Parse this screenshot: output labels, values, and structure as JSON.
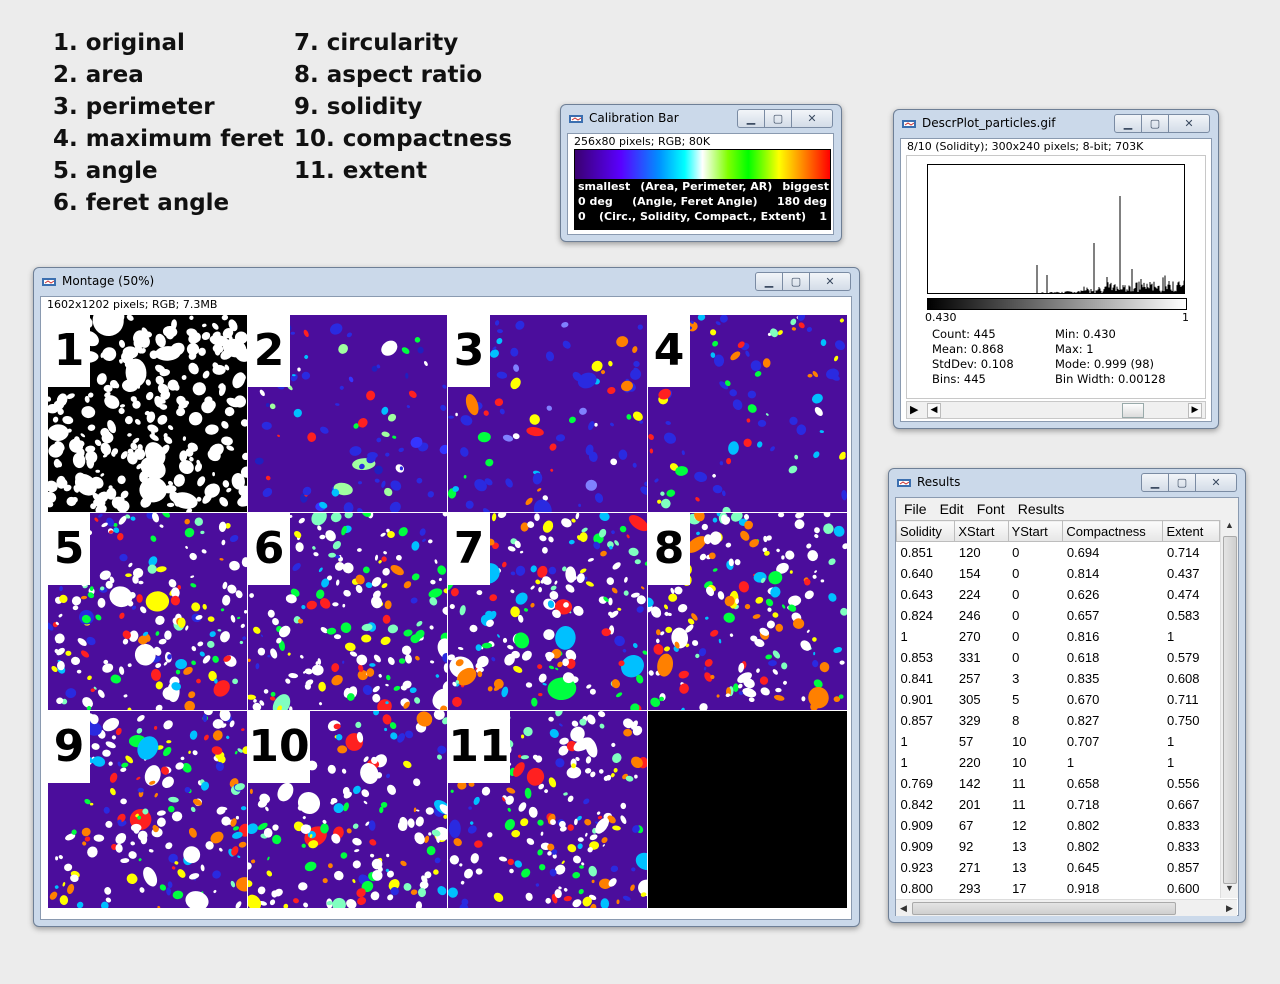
{
  "legend": {
    "col1": [
      "1. original",
      "2. area",
      "3. perimeter",
      "4. maximum feret",
      "5. angle",
      "6. feret angle"
    ],
    "col2": [
      "7. circularity",
      "8. aspect ratio",
      "9. solidity",
      "10. compactness",
      "11. extent"
    ]
  },
  "calibration": {
    "title": "Calibration Bar",
    "info": "256x80 pixels; RGB; 80K",
    "rows": [
      [
        "smallest",
        "(Area, Perimeter, AR)",
        "biggest"
      ],
      [
        "0 deg",
        "(Angle, Feret Angle)",
        "180 deg"
      ],
      [
        "0",
        "(Circ., Solidity, Compact., Extent)",
        "1"
      ]
    ]
  },
  "descr": {
    "title": "DescrPlot_particles.gif",
    "info": "8/10 (Solidity); 300x240 pixels; 8-bit; 703K",
    "axis_min": "0.430",
    "axis_max": "1",
    "stats_left": [
      "Count: 445",
      "Mean: 0.868",
      "StdDev: 0.108",
      "Bins: 445"
    ],
    "stats_right": [
      "Min: 0.430",
      "Max: 1",
      "Mode: 0.999 (98)",
      "Bin Width: 0.00128"
    ]
  },
  "montage": {
    "title": "Montage (50%)",
    "info": "1602x1202 pixels; RGB; 7.3MB",
    "tiles": [
      "1",
      "2",
      "3",
      "4",
      "5",
      "6",
      "7",
      "8",
      "9",
      "10",
      "11"
    ]
  },
  "results": {
    "title": "Results",
    "menu": [
      "File",
      "Edit",
      "Font",
      "Results"
    ],
    "columns": [
      "Solidity",
      "XStart",
      "YStart",
      "Compactness",
      "Extent"
    ],
    "rows": [
      [
        "0.851",
        "120",
        "0",
        "0.694",
        "0.714"
      ],
      [
        "0.640",
        "154",
        "0",
        "0.814",
        "0.437"
      ],
      [
        "0.643",
        "224",
        "0",
        "0.626",
        "0.474"
      ],
      [
        "0.824",
        "246",
        "0",
        "0.657",
        "0.583"
      ],
      [
        "1",
        "270",
        "0",
        "0.816",
        "1"
      ],
      [
        "0.853",
        "331",
        "0",
        "0.618",
        "0.579"
      ],
      [
        "0.841",
        "257",
        "3",
        "0.835",
        "0.608"
      ],
      [
        "0.901",
        "305",
        "5",
        "0.670",
        "0.711"
      ],
      [
        "0.857",
        "329",
        "8",
        "0.827",
        "0.750"
      ],
      [
        "1",
        "57",
        "10",
        "0.707",
        "1"
      ],
      [
        "1",
        "220",
        "10",
        "1",
        "1"
      ],
      [
        "0.769",
        "142",
        "11",
        "0.658",
        "0.556"
      ],
      [
        "0.842",
        "201",
        "11",
        "0.718",
        "0.667"
      ],
      [
        "0.909",
        "67",
        "12",
        "0.802",
        "0.833"
      ],
      [
        "0.909",
        "92",
        "13",
        "0.802",
        "0.833"
      ],
      [
        "0.923",
        "271",
        "13",
        "0.645",
        "0.857"
      ],
      [
        "0.800",
        "293",
        "17",
        "0.918",
        "0.600"
      ]
    ]
  },
  "window_buttons": {
    "minimize": "▁",
    "maximize": "▢",
    "close": "✕"
  },
  "colors": {
    "window_frame": "#cbd9ea",
    "purple_bg": "#4b0d9c",
    "black": "#000000"
  }
}
